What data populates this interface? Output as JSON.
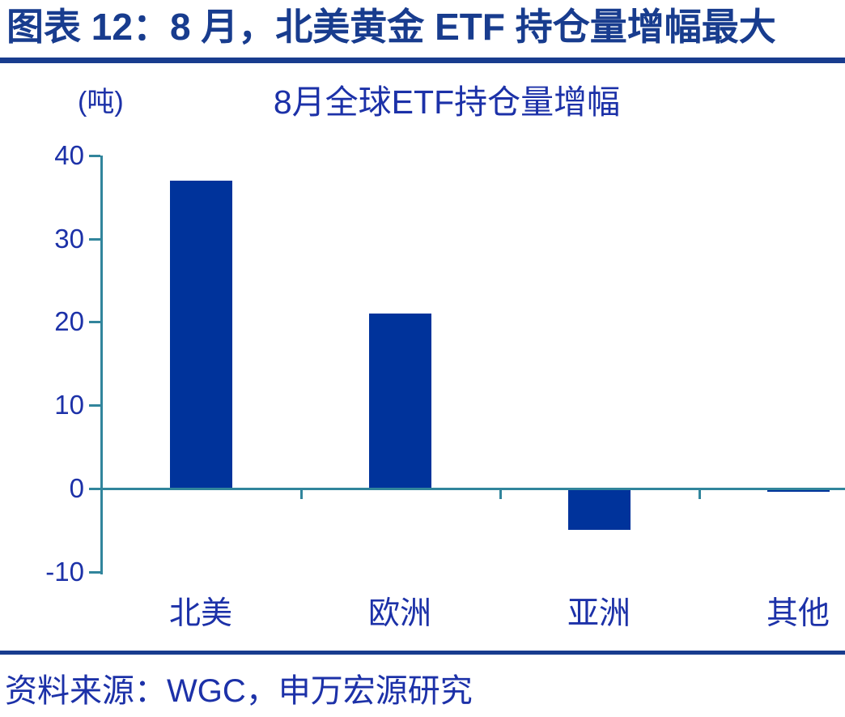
{
  "header": {
    "title": "图表 12：8 月，北美黄金 ETF 持仓量增幅最大"
  },
  "chart": {
    "unit_label": "(吨)",
    "title": "8月全球ETF持仓量增幅"
  },
  "chart_data": {
    "type": "bar",
    "title": "8月全球ETF持仓量增幅",
    "unit": "吨",
    "categories": [
      "北美",
      "欧洲",
      "亚洲",
      "其他"
    ],
    "values": [
      37,
      21,
      -5,
      -0.4
    ],
    "xlabel": "",
    "ylabel": "(吨)",
    "ylim": [
      -10,
      40
    ],
    "yticks": [
      40,
      30,
      20,
      10,
      0,
      -10
    ],
    "grid": false,
    "legend": false,
    "bar_color": "#00339B",
    "axis_color": "#31859C",
    "label_color": "#1C31A8"
  },
  "colors": {
    "header_navy": "#183C8E",
    "text_blue": "#1C31A8",
    "bar_blue": "#00339B",
    "axis_teal": "#31859C"
  },
  "footer": {
    "source": "资料来源：WGC，申万宏源研究"
  }
}
